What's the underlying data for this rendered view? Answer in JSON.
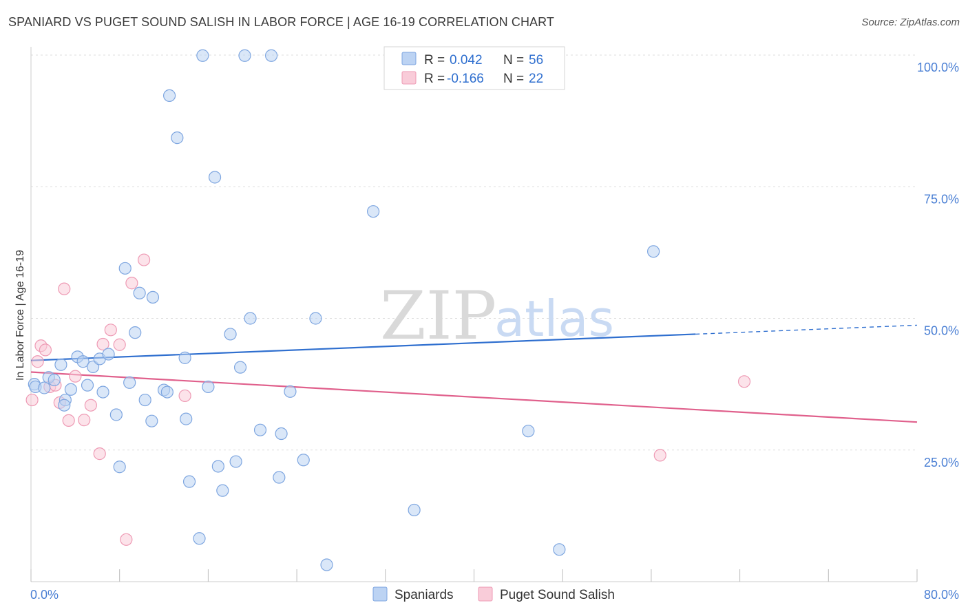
{
  "title": "SPANIARD VS PUGET SOUND SALISH IN LABOR FORCE | AGE 16-19 CORRELATION CHART",
  "source": "Source: ZipAtlas.com",
  "watermark": {
    "zip": "ZIP",
    "atlas": "atlas"
  },
  "colors": {
    "spaniards_fill": "#bcd3f3",
    "spaniards_stroke": "#7ea6e0",
    "spaniards_line": "#2f6fcf",
    "puget_fill": "#f9ccd9",
    "puget_stroke": "#ee9ab4",
    "puget_line": "#e0608c",
    "grid": "#dddddd",
    "tick_label": "#4a7fd4"
  },
  "legend": {
    "rows": [
      {
        "r_label": "R =",
        "r_value": "0.042",
        "n_label": "N =",
        "n_value": "56"
      },
      {
        "r_label": "R =",
        "r_value": "-0.166",
        "n_label": "N =",
        "n_value": "22"
      }
    ]
  },
  "chart_data": {
    "type": "scatter",
    "title": "SPANIARD VS PUGET SOUND SALISH IN LABOR FORCE | AGE 16-19 CORRELATION CHART",
    "xlabel": "",
    "ylabel": "In Labor Force | Age 16-19",
    "xlim": [
      0,
      80
    ],
    "ylim": [
      0,
      100
    ],
    "x_tick_labels": [
      {
        "value": 0,
        "label": "0.0%"
      },
      {
        "value": 80,
        "label": "80.0%"
      }
    ],
    "y_tick_labels": [
      {
        "value": 25,
        "label": "25.0%"
      },
      {
        "value": 50,
        "label": "50.0%"
      },
      {
        "value": 75,
        "label": "75.0%"
      },
      {
        "value": 100,
        "label": "100.0%"
      }
    ],
    "grid": true,
    "legend_position": "top-center",
    "series": [
      {
        "name": "Spaniards",
        "r": 0.042,
        "n": 56,
        "trend": {
          "x0": 0,
          "y0": 42.0,
          "x1": 60,
          "y1": 47.0,
          "dashed_to_x": 80,
          "dashed_to_y": 48.7
        },
        "points": [
          [
            0.3,
            37.5
          ],
          [
            0.4,
            37.0
          ],
          [
            1.2,
            36.8
          ],
          [
            1.6,
            38.8
          ],
          [
            2.1,
            38.3
          ],
          [
            2.7,
            41.2
          ],
          [
            3.1,
            34.5
          ],
          [
            3.6,
            36.5
          ],
          [
            4.2,
            42.7
          ],
          [
            4.7,
            41.8
          ],
          [
            5.1,
            37.3
          ],
          [
            5.6,
            40.8
          ],
          [
            6.2,
            42.3
          ],
          [
            6.5,
            36.0
          ],
          [
            7.0,
            43.2
          ],
          [
            7.7,
            31.7
          ],
          [
            8.0,
            21.8
          ],
          [
            8.5,
            59.5
          ],
          [
            8.9,
            37.8
          ],
          [
            9.4,
            47.3
          ],
          [
            9.8,
            54.8
          ],
          [
            10.3,
            34.5
          ],
          [
            11.0,
            54.0
          ],
          [
            12.0,
            36.4
          ],
          [
            12.3,
            36.0
          ],
          [
            12.5,
            92.3
          ],
          [
            13.2,
            84.3
          ],
          [
            13.9,
            42.5
          ],
          [
            14.0,
            30.9
          ],
          [
            14.3,
            19.0
          ],
          [
            15.2,
            8.2
          ],
          [
            15.5,
            99.9
          ],
          [
            16.0,
            37.0
          ],
          [
            16.6,
            76.8
          ],
          [
            16.9,
            21.9
          ],
          [
            17.3,
            17.3
          ],
          [
            18.0,
            47.0
          ],
          [
            18.5,
            22.8
          ],
          [
            18.9,
            40.7
          ],
          [
            19.3,
            99.9
          ],
          [
            19.8,
            50.0
          ],
          [
            20.7,
            28.8
          ],
          [
            21.7,
            99.9
          ],
          [
            22.4,
            19.8
          ],
          [
            22.6,
            28.1
          ],
          [
            23.4,
            36.1
          ],
          [
            24.6,
            23.1
          ],
          [
            25.7,
            50.0
          ],
          [
            26.7,
            3.2
          ],
          [
            30.9,
            70.3
          ],
          [
            34.6,
            13.6
          ],
          [
            44.9,
            28.6
          ],
          [
            47.7,
            6.1
          ],
          [
            56.2,
            62.7
          ],
          [
            10.9,
            30.5
          ],
          [
            3.0,
            33.5
          ]
        ]
      },
      {
        "name": "Puget Sound Salish",
        "r": -0.166,
        "n": 22,
        "trend": {
          "x0": 0,
          "y0": 39.8,
          "x1": 80,
          "y1": 30.3
        },
        "points": [
          [
            0.1,
            34.5
          ],
          [
            0.6,
            41.8
          ],
          [
            0.9,
            44.8
          ],
          [
            1.3,
            44.0
          ],
          [
            1.7,
            37.0
          ],
          [
            2.2,
            37.3
          ],
          [
            2.6,
            34.0
          ],
          [
            3.0,
            55.6
          ],
          [
            3.4,
            30.6
          ],
          [
            4.0,
            39.0
          ],
          [
            4.8,
            30.7
          ],
          [
            5.4,
            33.5
          ],
          [
            6.2,
            24.3
          ],
          [
            6.5,
            45.1
          ],
          [
            7.2,
            47.8
          ],
          [
            8.0,
            45.0
          ],
          [
            8.6,
            8.0
          ],
          [
            9.1,
            56.7
          ],
          [
            10.2,
            61.1
          ],
          [
            13.9,
            35.3
          ],
          [
            56.8,
            24.0
          ],
          [
            64.4,
            38.0
          ]
        ]
      }
    ]
  },
  "bottom_legend": [
    {
      "label": "Spaniards"
    },
    {
      "label": "Puget Sound Salish"
    }
  ]
}
